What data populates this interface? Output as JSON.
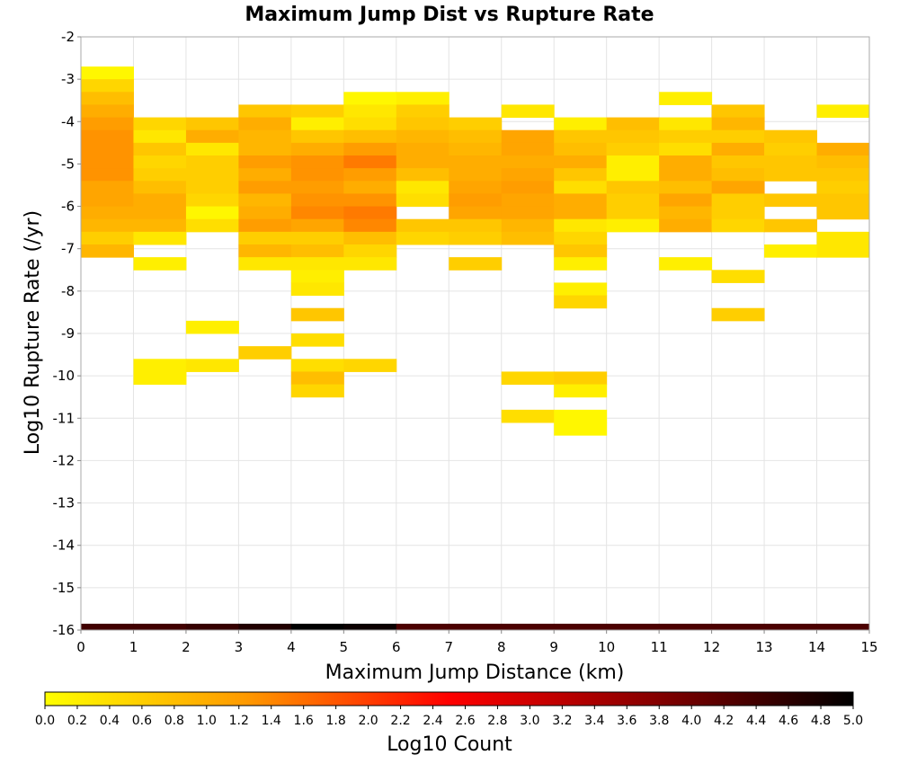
{
  "chart_data": {
    "type": "heatmap",
    "title": "Maximum Jump Dist vs Rupture Rate",
    "xlabel": "Maximum Jump Distance (km)",
    "ylabel": "Log10 Rupture Rate (/yr)",
    "xlim": [
      0,
      15
    ],
    "ylim": [
      -16,
      -2
    ],
    "x_ticks": [
      "0",
      "1",
      "2",
      "3",
      "4",
      "5",
      "6",
      "7",
      "8",
      "9",
      "10",
      "11",
      "12",
      "13",
      "14",
      "15"
    ],
    "y_ticks": [
      "-2",
      "-3",
      "-4",
      "-5",
      "-6",
      "-7",
      "-8",
      "-9",
      "-10",
      "-11",
      "-12",
      "-13",
      "-14",
      "-15",
      "-16"
    ],
    "grid": true,
    "x_bin_width": 1,
    "y_bin_height": 0.3,
    "colorbar": {
      "label": "Log10 Count",
      "min": 0.0,
      "max": 5.0,
      "ticks": [
        "0.0",
        "0.2",
        "0.4",
        "0.6",
        "0.8",
        "1.0",
        "1.2",
        "1.4",
        "1.6",
        "1.8",
        "2.0",
        "2.2",
        "2.4",
        "2.6",
        "2.8",
        "3.0",
        "3.2",
        "3.4",
        "3.6",
        "3.8",
        "4.0",
        "4.2",
        "4.4",
        "4.6",
        "4.8",
        "5.0"
      ],
      "colors": [
        "#ffff00",
        "#ff9900",
        "#ff0000",
        "#880000",
        "#000000"
      ]
    },
    "marginal_row": {
      "y_range": [
        -16,
        -15.85
      ],
      "values": [
        4.4,
        4.4,
        4.5,
        4.7,
        5.0,
        4.9,
        4.3,
        4.3,
        4.3,
        4.3,
        4.3,
        4.3,
        4.3,
        4.3,
        4.3
      ]
    },
    "columns": [
      {
        "x": 0,
        "cells": [
          [
            -2.7,
            0.1
          ],
          [
            -3.0,
            0.5
          ],
          [
            -3.3,
            0.8
          ],
          [
            -3.6,
            1.0
          ],
          [
            -3.9,
            1.2
          ],
          [
            -4.2,
            1.3
          ],
          [
            -4.5,
            1.3
          ],
          [
            -4.8,
            1.3
          ],
          [
            -5.1,
            1.3
          ],
          [
            -5.4,
            1.1
          ],
          [
            -5.7,
            1.1
          ],
          [
            -6.0,
            1.0
          ],
          [
            -6.3,
            0.9
          ],
          [
            -6.6,
            0.6
          ],
          [
            -6.9,
            0.9
          ]
        ]
      },
      {
        "x": 1,
        "cells": [
          [
            -3.9,
            0.5
          ],
          [
            -4.2,
            0.3
          ],
          [
            -4.5,
            0.7
          ],
          [
            -4.8,
            0.5
          ],
          [
            -5.1,
            0.6
          ],
          [
            -5.4,
            0.8
          ],
          [
            -5.7,
            1.0
          ],
          [
            -6.0,
            1.0
          ],
          [
            -6.3,
            0.9
          ],
          [
            -6.6,
            0.3
          ],
          [
            -7.2,
            0.2
          ],
          [
            -9.6,
            0.2
          ],
          [
            -9.9,
            0.2
          ]
        ]
      },
      {
        "x": 2,
        "cells": [
          [
            -3.9,
            0.7
          ],
          [
            -4.2,
            1.0
          ],
          [
            -4.5,
            0.3
          ],
          [
            -4.8,
            0.6
          ],
          [
            -5.1,
            0.6
          ],
          [
            -5.4,
            0.6
          ],
          [
            -5.7,
            0.5
          ],
          [
            -6.0,
            0.1
          ],
          [
            -6.3,
            0.4
          ],
          [
            -8.7,
            0.2
          ],
          [
            -9.6,
            0.3
          ]
        ]
      },
      {
        "x": 3,
        "cells": [
          [
            -3.6,
            0.7
          ],
          [
            -3.9,
            1.0
          ],
          [
            -4.2,
            0.9
          ],
          [
            -4.5,
            0.9
          ],
          [
            -4.8,
            1.2
          ],
          [
            -5.1,
            1.0
          ],
          [
            -5.4,
            1.2
          ],
          [
            -5.7,
            0.9
          ],
          [
            -6.0,
            1.0
          ],
          [
            -6.3,
            1.2
          ],
          [
            -6.6,
            0.6
          ],
          [
            -6.9,
            0.9
          ],
          [
            -7.2,
            0.3
          ],
          [
            -9.3,
            0.6
          ]
        ]
      },
      {
        "x": 4,
        "cells": [
          [
            -3.6,
            0.6
          ],
          [
            -3.9,
            0.2
          ],
          [
            -4.2,
            0.7
          ],
          [
            -4.5,
            1.0
          ],
          [
            -4.8,
            1.3
          ],
          [
            -5.1,
            1.3
          ],
          [
            -5.4,
            1.2
          ],
          [
            -5.7,
            1.3
          ],
          [
            -6.0,
            1.4
          ],
          [
            -6.3,
            1.1
          ],
          [
            -6.6,
            0.6
          ],
          [
            -6.9,
            0.8
          ],
          [
            -7.2,
            0.3
          ],
          [
            -7.5,
            0.2
          ],
          [
            -7.8,
            0.3
          ],
          [
            -8.4,
            0.7
          ],
          [
            -9.0,
            0.4
          ],
          [
            -9.6,
            0.4
          ],
          [
            -9.9,
            0.8
          ],
          [
            -10.2,
            0.5
          ]
        ]
      },
      {
        "x": 5,
        "cells": [
          [
            -3.3,
            0.1
          ],
          [
            -3.6,
            0.3
          ],
          [
            -3.9,
            0.4
          ],
          [
            -4.2,
            0.8
          ],
          [
            -4.5,
            1.2
          ],
          [
            -4.8,
            1.5
          ],
          [
            -5.1,
            1.2
          ],
          [
            -5.4,
            1.0
          ],
          [
            -5.7,
            1.3
          ],
          [
            -6.0,
            1.5
          ],
          [
            -6.3,
            1.4
          ],
          [
            -6.6,
            0.8
          ],
          [
            -6.9,
            0.5
          ],
          [
            -7.2,
            0.3
          ],
          [
            -9.6,
            0.5
          ]
        ]
      },
      {
        "x": 6,
        "cells": [
          [
            -3.3,
            0.2
          ],
          [
            -3.6,
            0.6
          ],
          [
            -3.9,
            0.7
          ],
          [
            -4.2,
            0.9
          ],
          [
            -4.5,
            1.0
          ],
          [
            -4.8,
            1.0
          ],
          [
            -5.1,
            0.8
          ],
          [
            -5.4,
            0.3
          ],
          [
            -5.7,
            0.4
          ],
          [
            -6.3,
            0.7
          ],
          [
            -6.6,
            0.5
          ]
        ]
      },
      {
        "x": 7,
        "cells": [
          [
            -3.9,
            0.6
          ],
          [
            -4.2,
            0.8
          ],
          [
            -4.5,
            0.9
          ],
          [
            -4.8,
            1.0
          ],
          [
            -5.1,
            1.0
          ],
          [
            -5.4,
            1.1
          ],
          [
            -5.7,
            1.2
          ],
          [
            -6.0,
            1.1
          ],
          [
            -6.3,
            0.7
          ],
          [
            -6.6,
            0.6
          ],
          [
            -7.2,
            0.6
          ]
        ]
      },
      {
        "x": 8,
        "cells": [
          [
            -3.6,
            0.3
          ],
          [
            -4.2,
            1.1
          ],
          [
            -4.5,
            1.1
          ],
          [
            -4.8,
            1.0
          ],
          [
            -5.1,
            1.1
          ],
          [
            -5.4,
            1.2
          ],
          [
            -5.7,
            1.1
          ],
          [
            -6.0,
            1.1
          ],
          [
            -6.3,
            0.9
          ],
          [
            -6.6,
            0.8
          ],
          [
            -9.9,
            0.5
          ],
          [
            -10.8,
            0.4
          ]
        ]
      },
      {
        "x": 9,
        "cells": [
          [
            -3.9,
            0.2
          ],
          [
            -4.2,
            0.7
          ],
          [
            -4.5,
            0.8
          ],
          [
            -4.8,
            1.0
          ],
          [
            -5.1,
            0.7
          ],
          [
            -5.4,
            0.4
          ],
          [
            -5.7,
            1.0
          ],
          [
            -6.0,
            1.0
          ],
          [
            -6.3,
            0.3
          ],
          [
            -6.6,
            0.5
          ],
          [
            -6.9,
            0.7
          ],
          [
            -7.2,
            0.2
          ],
          [
            -7.8,
            0.2
          ],
          [
            -8.1,
            0.5
          ],
          [
            -9.9,
            0.6
          ],
          [
            -10.2,
            0.2
          ],
          [
            -10.8,
            0.1
          ],
          [
            -11.1,
            0.1
          ]
        ]
      },
      {
        "x": 10,
        "cells": [
          [
            -3.9,
            0.8
          ],
          [
            -4.2,
            0.7
          ],
          [
            -4.5,
            0.6
          ],
          [
            -4.8,
            0.2
          ],
          [
            -5.1,
            0.2
          ],
          [
            -5.4,
            0.7
          ],
          [
            -5.7,
            0.6
          ],
          [
            -6.0,
            0.6
          ],
          [
            -6.3,
            0.2
          ]
        ]
      },
      {
        "x": 11,
        "cells": [
          [
            -3.3,
            0.2
          ],
          [
            -3.9,
            0.3
          ],
          [
            -4.2,
            0.6
          ],
          [
            -4.5,
            0.4
          ],
          [
            -4.8,
            1.0
          ],
          [
            -5.1,
            1.0
          ],
          [
            -5.4,
            0.8
          ],
          [
            -5.7,
            1.1
          ],
          [
            -6.0,
            0.9
          ],
          [
            -6.3,
            1.0
          ],
          [
            -7.2,
            0.2
          ]
        ]
      },
      {
        "x": 12,
        "cells": [
          [
            -3.6,
            0.7
          ],
          [
            -3.9,
            0.9
          ],
          [
            -4.2,
            0.6
          ],
          [
            -4.5,
            1.0
          ],
          [
            -4.8,
            0.7
          ],
          [
            -5.1,
            0.8
          ],
          [
            -5.4,
            1.1
          ],
          [
            -5.7,
            0.6
          ],
          [
            -6.0,
            0.6
          ],
          [
            -6.3,
            0.5
          ],
          [
            -7.5,
            0.4
          ],
          [
            -8.4,
            0.6
          ]
        ]
      },
      {
        "x": 13,
        "cells": [
          [
            -4.2,
            0.7
          ],
          [
            -4.5,
            0.6
          ],
          [
            -4.8,
            0.7
          ],
          [
            -5.1,
            0.7
          ],
          [
            -5.7,
            0.7
          ],
          [
            -6.3,
            0.7
          ],
          [
            -6.9,
            0.2
          ]
        ]
      },
      {
        "x": 14,
        "cells": [
          [
            -3.6,
            0.2
          ],
          [
            -4.5,
            1.0
          ],
          [
            -4.8,
            0.8
          ],
          [
            -5.1,
            0.7
          ],
          [
            -5.4,
            0.6
          ],
          [
            -5.7,
            0.7
          ],
          [
            -6.0,
            0.7
          ],
          [
            -6.6,
            0.3
          ],
          [
            -6.9,
            0.3
          ]
        ]
      }
    ]
  }
}
